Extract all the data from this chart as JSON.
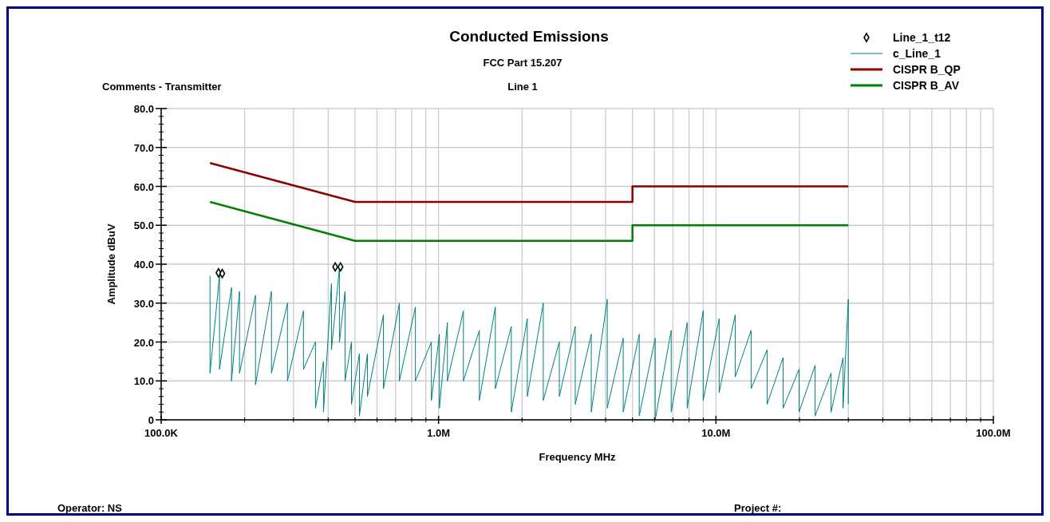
{
  "chart_data": {
    "type": "line",
    "title": "Conducted Emissions",
    "subtitle": "FCC Part 15.207",
    "xlabel": "Frequency MHz",
    "ylabel": "Amplitude dBuV",
    "annotations": [
      "Line 1",
      "Comments - Transmitter",
      "Operator: NS",
      "Project #:"
    ],
    "log": "x",
    "grid": true,
    "legend": "top right",
    "xlim": [
      100000,
      100000000
    ],
    "xticks": [
      {
        "value": 100000,
        "label": "100.0K"
      },
      {
        "value": 1000000,
        "label": "1.0M"
      },
      {
        "value": 10000000,
        "label": "10.0M"
      },
      {
        "value": 100000000,
        "label": "100.0M"
      }
    ],
    "ylim": [
      0,
      80
    ],
    "yticks": [
      0,
      {
        "value": 10,
        "label": "10.0"
      },
      {
        "value": 20,
        "label": "20.0"
      },
      {
        "value": 30,
        "label": "30.0"
      },
      {
        "value": 40,
        "label": "40.0"
      },
      {
        "value": 50,
        "label": "50.0"
      },
      {
        "value": 60,
        "label": "60.0"
      },
      {
        "value": 70,
        "label": "70.0"
      },
      {
        "value": 80,
        "label": "80.0"
      }
    ],
    "series": [
      {
        "name": "Line_1_t12",
        "type": "scatter",
        "marker": "diamond",
        "color": "#000000",
        "x": [
          161000,
          166000,
          424000,
          443000
        ],
        "values": [
          37.8,
          37.6,
          39.3,
          39.3
        ]
      },
      {
        "name": "c_Line_1",
        "color": "#008080",
        "x": [
          150000,
          150000,
          162300,
          162300,
          179300,
          179300,
          191600,
          191600,
          218800,
          218800,
          249800,
          249800,
          285300,
          285300,
          325800,
          325800,
          359900,
          359900,
          384600,
          384600,
          411100,
          411100,
          439100,
          439100,
          460100,
          460100,
          485200,
          485200,
          518400,
          518400,
          553900,
          553900,
          632700,
          632700,
          722500,
          722500,
          825000,
          825000,
          942100,
          942100,
          1007000,
          1007000,
          1076000,
          1076000,
          1229000,
          1229000,
          1403000,
          1403000,
          1602000,
          1602000,
          1829000,
          1829000,
          2089000,
          2089000,
          2385000,
          2385000,
          2724000,
          2724000,
          3110000,
          3110000,
          3552000,
          3552000,
          4056000,
          4056000,
          4631000,
          4631000,
          5289000,
          5289000,
          6039000,
          6039000,
          6896000,
          6896000,
          7876000,
          7876000,
          8993000,
          8993000,
          10270000,
          10270000,
          11730000,
          11730000,
          13390000,
          13390000,
          15290000,
          15290000,
          17460000,
          17460000,
          19940000,
          19940000,
          22770000,
          22770000,
          26000000,
          26000000,
          28720000,
          28720000,
          30000000,
          30000000
        ],
        "values": [
          37,
          12,
          37,
          13,
          34,
          10,
          33,
          12,
          32,
          9,
          33,
          12,
          30,
          10,
          28,
          13,
          20,
          3,
          15,
          2,
          35,
          18,
          39,
          20,
          33,
          10,
          20,
          4,
          17,
          1,
          17,
          6,
          27,
          8,
          30,
          10,
          29,
          10,
          20,
          5,
          22,
          3,
          25,
          10,
          28,
          10,
          23,
          5,
          29,
          8,
          24,
          2,
          26,
          6,
          30,
          5,
          20,
          6,
          24,
          4,
          22,
          2,
          31,
          3,
          21,
          2,
          22,
          1,
          21,
          0,
          23,
          2,
          25,
          3,
          28,
          5,
          26,
          7,
          27,
          11,
          23,
          8,
          18,
          4,
          16,
          3,
          13,
          2,
          14,
          1,
          12,
          2,
          16,
          3,
          31,
          4
        ]
      },
      {
        "name": "CISPR B_QP",
        "color": "#8b0000",
        "x": [
          150000,
          500000,
          5000000,
          5000000,
          30000000
        ],
        "values": [
          66,
          56,
          56,
          60,
          60
        ]
      },
      {
        "name": "CISPR B_AV",
        "color": "#008000",
        "x": [
          150000,
          500000,
          5000000,
          5000000,
          30000000
        ],
        "values": [
          56,
          46,
          46,
          50,
          50
        ]
      }
    ]
  }
}
